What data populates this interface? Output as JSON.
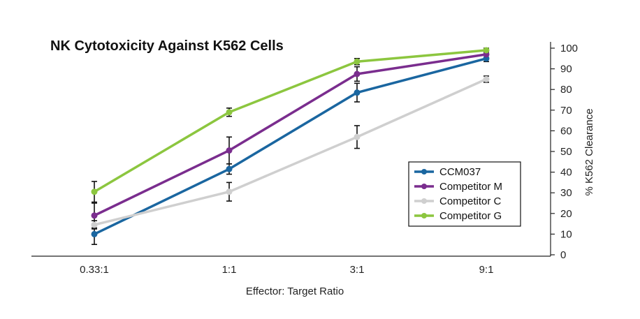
{
  "chart_data": {
    "type": "line",
    "title": "NK Cytotoxicity Against K562 Cells",
    "xlabel": "Effector: Target Ratio",
    "ylabel": "% K562 Clearance",
    "categories": [
      "0.33:1",
      "1:1",
      "3:1",
      "9:1"
    ],
    "ylim": [
      0,
      100
    ],
    "yticks": [
      "0",
      "10",
      "20",
      "30",
      "40",
      "50",
      "60",
      "70",
      "80",
      "90",
      "100"
    ],
    "y_axis_side": "right",
    "grid": false,
    "legend_position": "center-right",
    "error_bars": true,
    "series": [
      {
        "name": "CCM037",
        "color": "#1a66a0",
        "values": [
          10,
          41.5,
          78.5,
          95
        ],
        "error": [
          5,
          2.5,
          4.5,
          1.5
        ]
      },
      {
        "name": "Competitor M",
        "color": "#7a2d8e",
        "values": [
          19,
          50.5,
          87.5,
          97
        ],
        "error": [
          6,
          6.5,
          3.5,
          1.5
        ]
      },
      {
        "name": "Competitor C",
        "color": "#cfcfcf",
        "values": [
          14.5,
          30.5,
          57,
          85
        ],
        "error": [
          2,
          4.5,
          5.5,
          1.5
        ]
      },
      {
        "name": "Competitor G",
        "color": "#8cc63f",
        "values": [
          30.5,
          69,
          93.5,
          99
        ],
        "error": [
          5,
          2,
          1.5,
          1
        ]
      }
    ]
  }
}
